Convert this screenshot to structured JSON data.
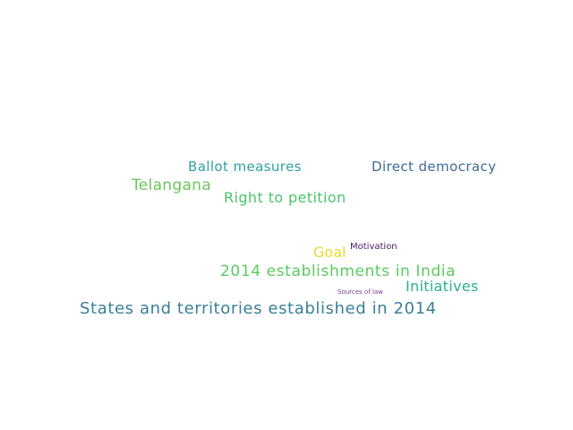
{
  "word_cloud": {
    "words": [
      {
        "text": "Ballot measures",
        "color": "#31a0a0"
      },
      {
        "text": "Direct democracy",
        "color": "#3b6c96"
      },
      {
        "text": "Telangana",
        "color": "#6cc65a"
      },
      {
        "text": "Right to petition",
        "color": "#4cc46b"
      },
      {
        "text": "Goal",
        "color": "#e8dc2a"
      },
      {
        "text": "Motivation",
        "color": "#4b1a6c"
      },
      {
        "text": "2014 establishments in India",
        "color": "#5bca60"
      },
      {
        "text": "Initiatives",
        "color": "#2db08e"
      },
      {
        "text": "Sources of law",
        "color": "#7a3d8e"
      },
      {
        "text": "States and territories established in 2014",
        "color": "#3b7f9a"
      }
    ]
  }
}
